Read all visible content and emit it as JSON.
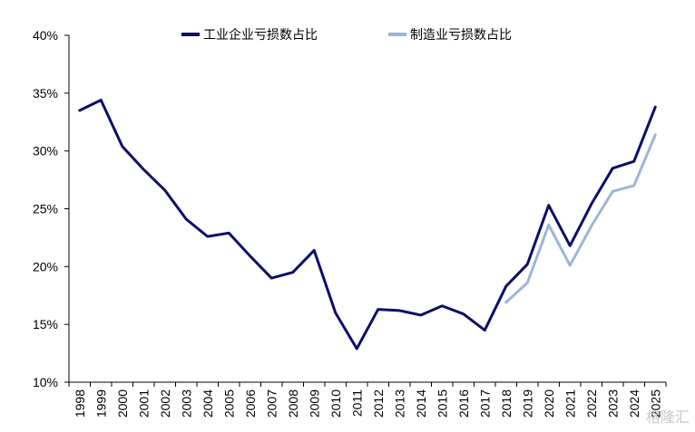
{
  "chart_data": {
    "type": "line",
    "title": "",
    "xlabel": "",
    "ylabel": "",
    "categories": [
      "1998",
      "1999",
      "2000",
      "2001",
      "2002",
      "2003",
      "2004",
      "2005",
      "2006",
      "2007",
      "2008",
      "2009",
      "2010",
      "2011",
      "2012",
      "2013",
      "2014",
      "2015",
      "2016",
      "2017",
      "2018",
      "2019",
      "2020",
      "2021",
      "2022",
      "2023",
      "2024",
      "2025"
    ],
    "y_ticks": [
      "10%",
      "15%",
      "20%",
      "25%",
      "30%",
      "35%",
      "40%"
    ],
    "ylim": [
      10,
      40
    ],
    "legend_position": "top",
    "series": [
      {
        "name": "工业企业亏损数占比",
        "color": "#0d0d6b",
        "values": [
          33.5,
          34.4,
          30.4,
          28.4,
          26.6,
          24.1,
          22.6,
          22.9,
          20.9,
          19.0,
          19.5,
          21.4,
          16.0,
          12.9,
          16.3,
          16.2,
          15.8,
          16.6,
          15.9,
          14.5,
          18.3,
          20.2,
          25.3,
          21.8,
          25.4,
          28.5,
          29.1,
          33.8
        ]
      },
      {
        "name": "制造业亏损数占比",
        "color": "#9db5d9",
        "values": [
          null,
          null,
          null,
          null,
          null,
          null,
          null,
          null,
          null,
          null,
          null,
          null,
          null,
          null,
          null,
          null,
          null,
          null,
          null,
          null,
          16.9,
          18.6,
          23.6,
          20.1,
          23.5,
          26.5,
          27.0,
          31.4
        ]
      }
    ]
  },
  "watermark": "格隆汇"
}
